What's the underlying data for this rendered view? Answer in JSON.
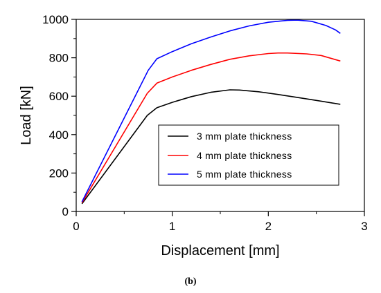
{
  "chart_data": {
    "type": "line",
    "xlabel": "Displacement [mm]",
    "ylabel": "Load [kN]",
    "xlim": [
      0,
      3
    ],
    "ylim": [
      0,
      1000
    ],
    "x_ticks": [
      "0",
      "1",
      "2",
      "3"
    ],
    "y_ticks": [
      "0",
      "200",
      "400",
      "600",
      "800",
      "1000"
    ],
    "grid": false,
    "legend_position": "center-right",
    "caption": "(b)",
    "series": [
      {
        "name": "3 mm plate thickness",
        "color": "#000000",
        "x": [
          0.06,
          0.74,
          0.84,
          1.0,
          1.2,
          1.4,
          1.6,
          1.7,
          1.9,
          2.1,
          2.3,
          2.5,
          2.75
        ],
        "y": [
          40,
          500,
          540,
          568,
          598,
          620,
          633,
          632,
          623,
          609,
          594,
          578,
          558
        ]
      },
      {
        "name": "4 mm plate thickness",
        "color": "#ff0000",
        "x": [
          0.06,
          0.74,
          0.84,
          1.0,
          1.2,
          1.4,
          1.6,
          1.8,
          2.0,
          2.1,
          2.2,
          2.4,
          2.55,
          2.75
        ],
        "y": [
          45,
          615,
          668,
          700,
          735,
          765,
          792,
          810,
          822,
          825,
          825,
          820,
          812,
          783
        ]
      },
      {
        "name": "5 mm plate thickness",
        "color": "#0000ff",
        "x": [
          0.06,
          0.75,
          0.84,
          1.0,
          1.2,
          1.4,
          1.6,
          1.8,
          2.0,
          2.2,
          2.3,
          2.45,
          2.6,
          2.7,
          2.75
        ],
        "y": [
          50,
          735,
          795,
          832,
          873,
          908,
          940,
          966,
          985,
          995,
          996,
          990,
          968,
          945,
          927
        ]
      }
    ]
  }
}
